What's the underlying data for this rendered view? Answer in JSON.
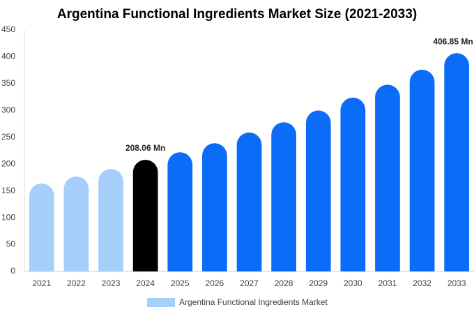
{
  "chart_data": {
    "type": "bar",
    "title": "Argentina Functional Ingredients Market Size (2021-2033)",
    "categories": [
      "2021",
      "2022",
      "2023",
      "2024",
      "2025",
      "2026",
      "2027",
      "2028",
      "2029",
      "2030",
      "2031",
      "2032",
      "2033"
    ],
    "series": [
      {
        "name": "Argentina Functional Ingredients Market",
        "color": "#a6cffc",
        "values": [
          164,
          177,
          191,
          208.06,
          222,
          239,
          259,
          278,
          300,
          324,
          348,
          376,
          406.85
        ],
        "value_labels": [
          null,
          null,
          null,
          "208.06 Mn",
          null,
          null,
          null,
          null,
          null,
          null,
          null,
          null,
          "406.85 Mn"
        ],
        "colors": [
          "#a6cffc",
          "#a6cffc",
          "#a6cffc",
          "#000000",
          "#0b6cf7",
          "#0b6cf7",
          "#0b6cf7",
          "#0b6cf7",
          "#0b6cf7",
          "#0b6cf7",
          "#0b6cf7",
          "#0b6cf7",
          "#0b6cf7"
        ]
      }
    ],
    "ylim": [
      0,
      450
    ],
    "yticks": [
      0,
      50,
      100,
      150,
      200,
      250,
      300,
      350,
      400,
      450
    ],
    "grid": false,
    "legend": "bottom"
  }
}
